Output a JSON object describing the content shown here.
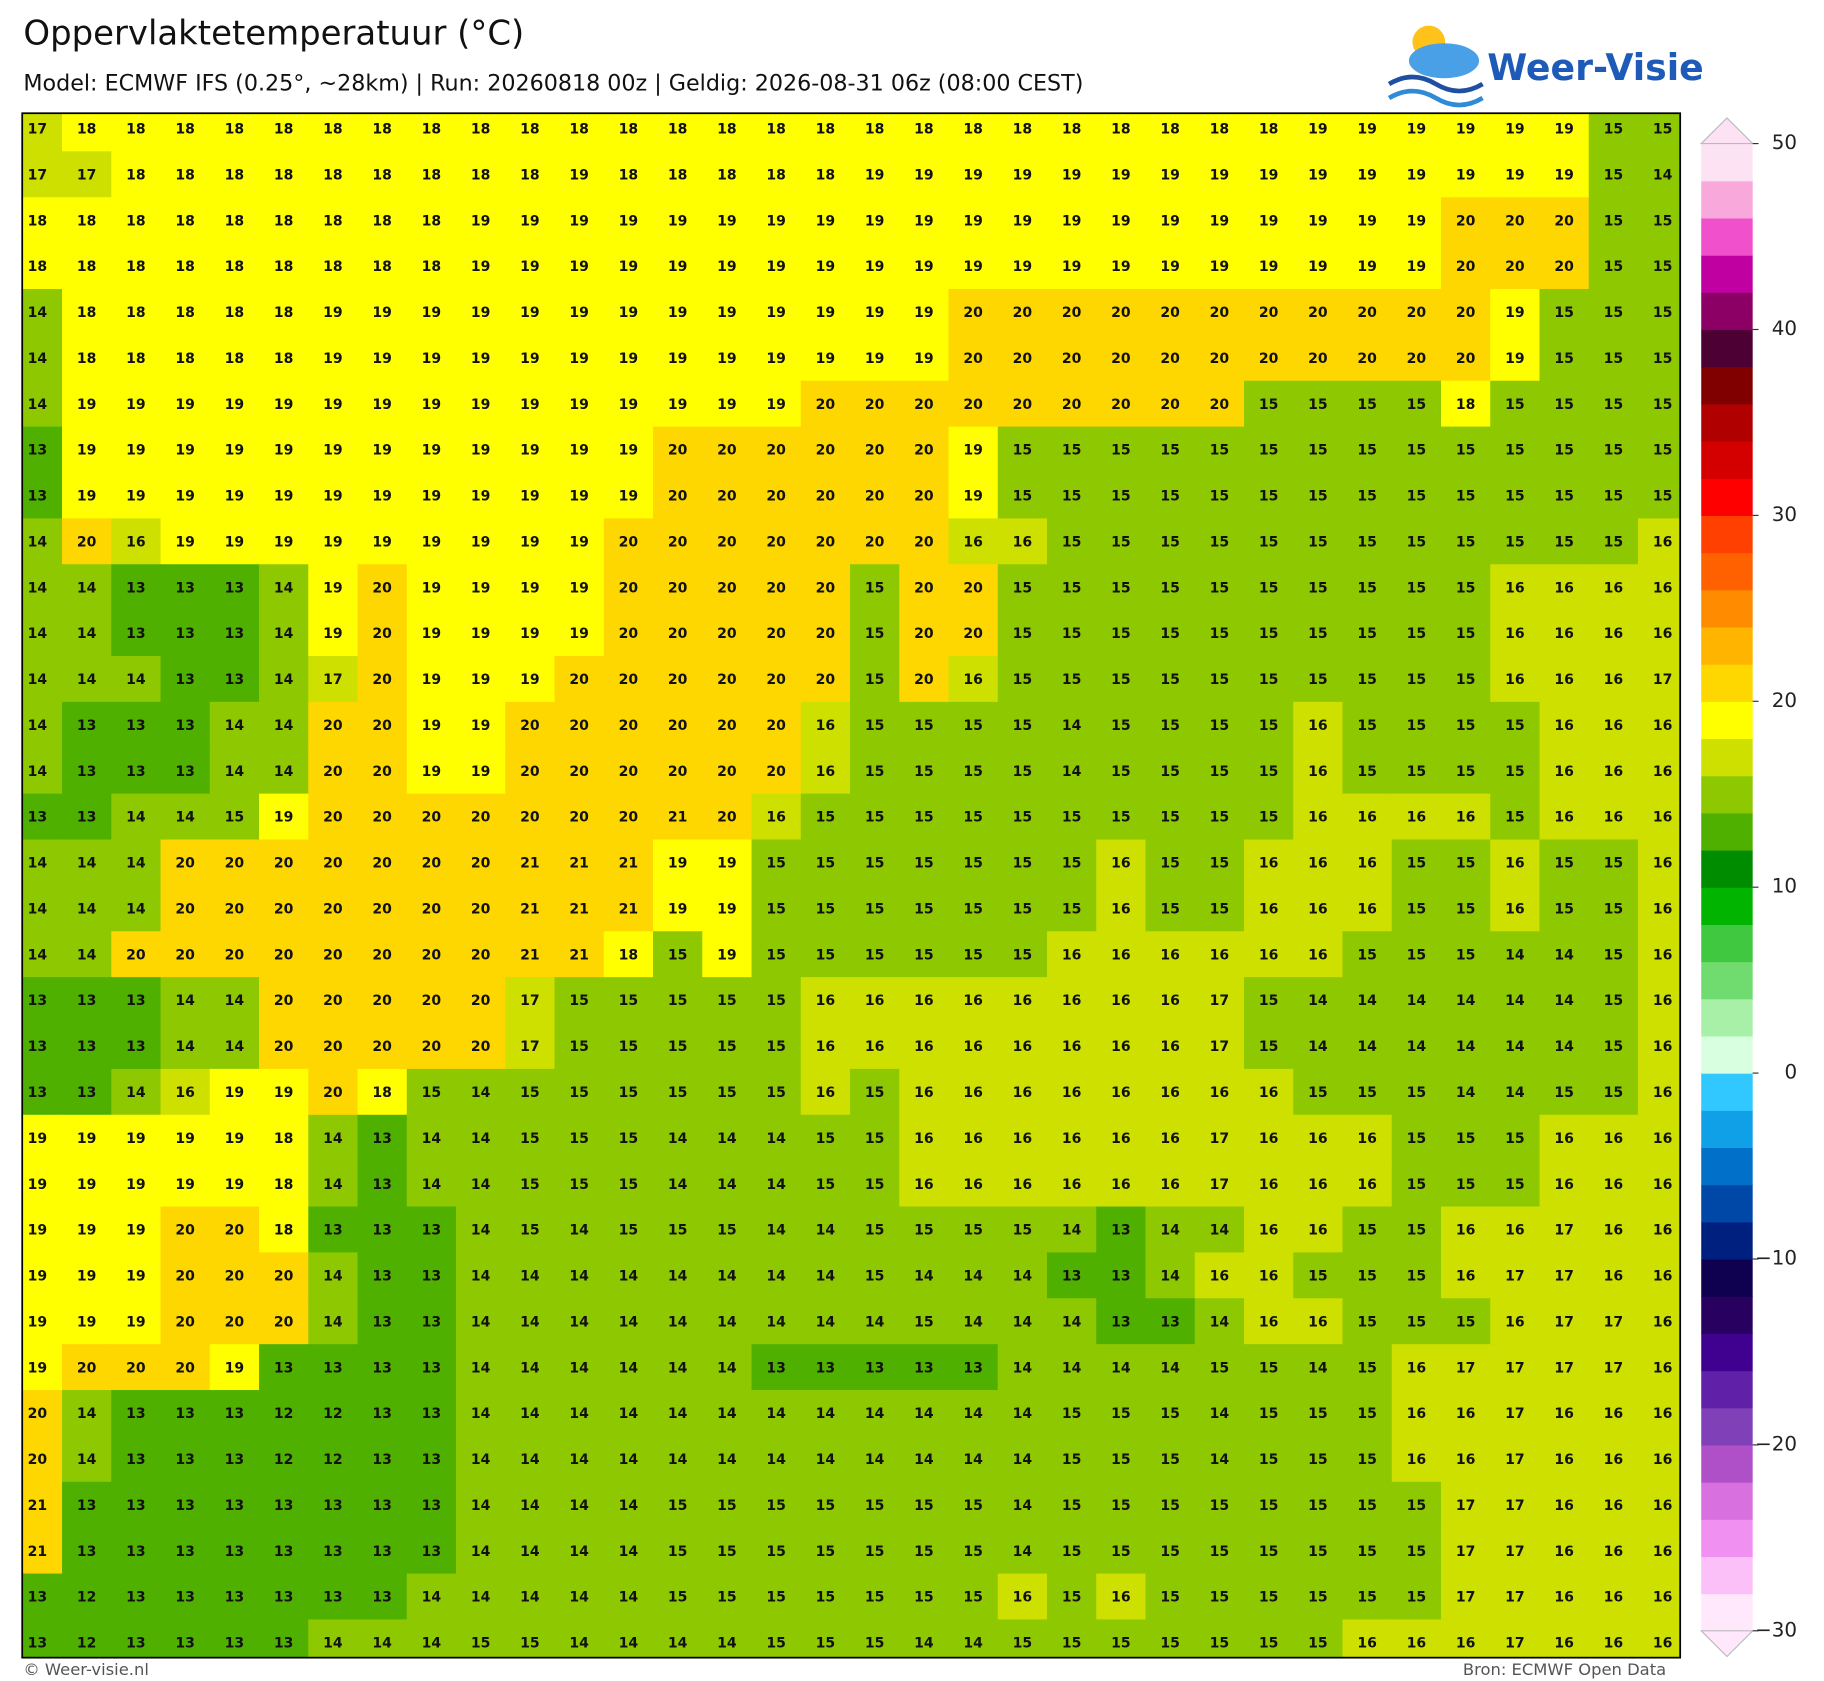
{
  "header": {
    "title": "Oppervlaktetemperatuur (°C)",
    "subtitle": "Model: ECMWF IFS (0.25°, ~28km)  |  Run: 20260818 00z  |  Geldig: 2026-08-31 06z (08:00 CEST)"
  },
  "logo": {
    "text": "Weer-Visie"
  },
  "grid": {
    "rows": [
      [
        17,
        18,
        18,
        18,
        18,
        18,
        18,
        18,
        18,
        18,
        18,
        18,
        18,
        18,
        18,
        18,
        18,
        18,
        18,
        18,
        18,
        18,
        18,
        18,
        18,
        18,
        19,
        19,
        19,
        19,
        19,
        19,
        15,
        15
      ],
      [
        17,
        17,
        18,
        18,
        18,
        18,
        18,
        18,
        18,
        18,
        18,
        19,
        18,
        18,
        18,
        18,
        18,
        19,
        19,
        19,
        19,
        19,
        19,
        19,
        19,
        19,
        19,
        19,
        19,
        19,
        19,
        19,
        15,
        14
      ],
      [
        18,
        18,
        18,
        18,
        18,
        18,
        18,
        18,
        18,
        19,
        19,
        19,
        19,
        19,
        19,
        19,
        19,
        19,
        19,
        19,
        19,
        19,
        19,
        19,
        19,
        19,
        19,
        19,
        19,
        20,
        20,
        20,
        15,
        15
      ],
      [
        18,
        18,
        18,
        18,
        18,
        18,
        18,
        18,
        18,
        19,
        19,
        19,
        19,
        19,
        19,
        19,
        19,
        19,
        19,
        19,
        19,
        19,
        19,
        19,
        19,
        19,
        19,
        19,
        19,
        20,
        20,
        20,
        15,
        15
      ],
      [
        14,
        18,
        18,
        18,
        18,
        18,
        19,
        19,
        19,
        19,
        19,
        19,
        19,
        19,
        19,
        19,
        19,
        19,
        19,
        20,
        20,
        20,
        20,
        20,
        20,
        20,
        20,
        20,
        20,
        20,
        19,
        15,
        15,
        15
      ],
      [
        14,
        18,
        18,
        18,
        18,
        18,
        19,
        19,
        19,
        19,
        19,
        19,
        19,
        19,
        19,
        19,
        19,
        19,
        19,
        20,
        20,
        20,
        20,
        20,
        20,
        20,
        20,
        20,
        20,
        20,
        19,
        15,
        15,
        15
      ],
      [
        14,
        19,
        19,
        19,
        19,
        19,
        19,
        19,
        19,
        19,
        19,
        19,
        19,
        19,
        19,
        19,
        20,
        20,
        20,
        20,
        20,
        20,
        20,
        20,
        20,
        15,
        15,
        15,
        15,
        18,
        15,
        15,
        15,
        15
      ],
      [
        13,
        19,
        19,
        19,
        19,
        19,
        19,
        19,
        19,
        19,
        19,
        19,
        19,
        20,
        20,
        20,
        20,
        20,
        20,
        19,
        15,
        15,
        15,
        15,
        15,
        15,
        15,
        15,
        15,
        15,
        15,
        15,
        15,
        15
      ],
      [
        13,
        19,
        19,
        19,
        19,
        19,
        19,
        19,
        19,
        19,
        19,
        19,
        19,
        20,
        20,
        20,
        20,
        20,
        20,
        19,
        15,
        15,
        15,
        15,
        15,
        15,
        15,
        15,
        15,
        15,
        15,
        15,
        15,
        15
      ],
      [
        14,
        20,
        16,
        19,
        19,
        19,
        19,
        19,
        19,
        19,
        19,
        19,
        20,
        20,
        20,
        20,
        20,
        20,
        20,
        16,
        16,
        15,
        15,
        15,
        15,
        15,
        15,
        15,
        15,
        15,
        15,
        15,
        15,
        16
      ],
      [
        14,
        14,
        13,
        13,
        13,
        14,
        19,
        20,
        19,
        19,
        19,
        19,
        20,
        20,
        20,
        20,
        20,
        15,
        20,
        20,
        15,
        15,
        15,
        15,
        15,
        15,
        15,
        15,
        15,
        15,
        16,
        16,
        16,
        16
      ],
      [
        14,
        14,
        13,
        13,
        13,
        14,
        19,
        20,
        19,
        19,
        19,
        19,
        20,
        20,
        20,
        20,
        20,
        15,
        20,
        20,
        15,
        15,
        15,
        15,
        15,
        15,
        15,
        15,
        15,
        15,
        16,
        16,
        16,
        16
      ],
      [
        14,
        14,
        14,
        13,
        13,
        14,
        17,
        20,
        19,
        19,
        19,
        20,
        20,
        20,
        20,
        20,
        20,
        15,
        20,
        16,
        15,
        15,
        15,
        15,
        15,
        15,
        15,
        15,
        15,
        15,
        16,
        16,
        16,
        17
      ],
      [
        14,
        13,
        13,
        13,
        14,
        14,
        20,
        20,
        19,
        19,
        20,
        20,
        20,
        20,
        20,
        20,
        16,
        15,
        15,
        15,
        15,
        14,
        15,
        15,
        15,
        15,
        16,
        15,
        15,
        15,
        15,
        16,
        16,
        16
      ],
      [
        14,
        13,
        13,
        13,
        14,
        14,
        20,
        20,
        19,
        19,
        20,
        20,
        20,
        20,
        20,
        20,
        16,
        15,
        15,
        15,
        15,
        14,
        15,
        15,
        15,
        15,
        16,
        15,
        15,
        15,
        15,
        16,
        16,
        16
      ],
      [
        13,
        13,
        14,
        14,
        15,
        19,
        20,
        20,
        20,
        20,
        20,
        20,
        20,
        21,
        20,
        16,
        15,
        15,
        15,
        15,
        15,
        15,
        15,
        15,
        15,
        15,
        16,
        16,
        16,
        16,
        15,
        16,
        16,
        16
      ],
      [
        14,
        14,
        14,
        20,
        20,
        20,
        20,
        20,
        20,
        20,
        21,
        21,
        21,
        19,
        19,
        15,
        15,
        15,
        15,
        15,
        15,
        15,
        16,
        15,
        15,
        16,
        16,
        16,
        15,
        15,
        16,
        15,
        15,
        16
      ],
      [
        14,
        14,
        14,
        20,
        20,
        20,
        20,
        20,
        20,
        20,
        21,
        21,
        21,
        19,
        19,
        15,
        15,
        15,
        15,
        15,
        15,
        15,
        16,
        15,
        15,
        16,
        16,
        16,
        15,
        15,
        16,
        15,
        15,
        16
      ],
      [
        14,
        14,
        20,
        20,
        20,
        20,
        20,
        20,
        20,
        20,
        21,
        21,
        18,
        15,
        19,
        15,
        15,
        15,
        15,
        15,
        15,
        16,
        16,
        16,
        16,
        16,
        16,
        15,
        15,
        15,
        14,
        14,
        15,
        16
      ],
      [
        13,
        13,
        13,
        14,
        14,
        20,
        20,
        20,
        20,
        20,
        17,
        15,
        15,
        15,
        15,
        15,
        16,
        16,
        16,
        16,
        16,
        16,
        16,
        16,
        17,
        15,
        14,
        14,
        14,
        14,
        14,
        14,
        15,
        16
      ],
      [
        13,
        13,
        13,
        14,
        14,
        20,
        20,
        20,
        20,
        20,
        17,
        15,
        15,
        15,
        15,
        15,
        16,
        16,
        16,
        16,
        16,
        16,
        16,
        16,
        17,
        15,
        14,
        14,
        14,
        14,
        14,
        14,
        15,
        16
      ],
      [
        13,
        13,
        14,
        16,
        19,
        19,
        20,
        18,
        15,
        14,
        15,
        15,
        15,
        15,
        15,
        15,
        16,
        15,
        16,
        16,
        16,
        16,
        16,
        16,
        16,
        16,
        15,
        15,
        15,
        14,
        14,
        15,
        15,
        16
      ],
      [
        19,
        19,
        19,
        19,
        19,
        18,
        14,
        13,
        14,
        14,
        15,
        15,
        15,
        14,
        14,
        14,
        15,
        15,
        16,
        16,
        16,
        16,
        16,
        16,
        17,
        16,
        16,
        16,
        15,
        15,
        15,
        16,
        16,
        16
      ],
      [
        19,
        19,
        19,
        19,
        19,
        18,
        14,
        13,
        14,
        14,
        15,
        15,
        15,
        14,
        14,
        14,
        15,
        15,
        16,
        16,
        16,
        16,
        16,
        16,
        17,
        16,
        16,
        16,
        15,
        15,
        15,
        16,
        16,
        16
      ],
      [
        19,
        19,
        19,
        20,
        20,
        18,
        13,
        13,
        13,
        14,
        15,
        14,
        15,
        15,
        15,
        14,
        14,
        15,
        15,
        15,
        15,
        14,
        13,
        14,
        14,
        16,
        16,
        15,
        15,
        16,
        16,
        17,
        16,
        16
      ],
      [
        19,
        19,
        19,
        20,
        20,
        20,
        14,
        13,
        13,
        14,
        14,
        14,
        14,
        14,
        14,
        14,
        14,
        15,
        14,
        14,
        14,
        13,
        13,
        14,
        16,
        16,
        15,
        15,
        15,
        16,
        17,
        17,
        16,
        16
      ],
      [
        19,
        19,
        19,
        20,
        20,
        20,
        14,
        13,
        13,
        14,
        14,
        14,
        14,
        14,
        14,
        14,
        14,
        14,
        15,
        14,
        14,
        14,
        13,
        13,
        14,
        16,
        16,
        15,
        15,
        15,
        16,
        17,
        17,
        16
      ],
      [
        19,
        20,
        20,
        20,
        19,
        13,
        13,
        13,
        13,
        14,
        14,
        14,
        14,
        14,
        14,
        13,
        13,
        13,
        13,
        13,
        14,
        14,
        14,
        14,
        15,
        15,
        14,
        15,
        16,
        17,
        17,
        17,
        17,
        16
      ],
      [
        20,
        14,
        13,
        13,
        13,
        12,
        12,
        13,
        13,
        14,
        14,
        14,
        14,
        14,
        14,
        14,
        14,
        14,
        14,
        14,
        14,
        15,
        15,
        15,
        14,
        15,
        15,
        15,
        16,
        16,
        17,
        16,
        16,
        16
      ],
      [
        20,
        14,
        13,
        13,
        13,
        12,
        12,
        13,
        13,
        14,
        14,
        14,
        14,
        14,
        14,
        14,
        14,
        14,
        14,
        14,
        14,
        15,
        15,
        15,
        14,
        15,
        15,
        15,
        16,
        16,
        17,
        16,
        16,
        16
      ],
      [
        21,
        13,
        13,
        13,
        13,
        13,
        13,
        13,
        13,
        14,
        14,
        14,
        14,
        15,
        15,
        15,
        15,
        15,
        15,
        15,
        14,
        15,
        15,
        15,
        15,
        15,
        15,
        15,
        15,
        17,
        17,
        16,
        16,
        16
      ],
      [
        21,
        13,
        13,
        13,
        13,
        13,
        13,
        13,
        13,
        14,
        14,
        14,
        14,
        15,
        15,
        15,
        15,
        15,
        15,
        15,
        14,
        15,
        15,
        15,
        15,
        15,
        15,
        15,
        15,
        17,
        17,
        16,
        16,
        16
      ],
      [
        13,
        12,
        13,
        13,
        13,
        13,
        13,
        13,
        14,
        14,
        14,
        14,
        14,
        15,
        15,
        15,
        15,
        15,
        15,
        15,
        16,
        15,
        16,
        15,
        15,
        15,
        15,
        15,
        15,
        17,
        17,
        16,
        16,
        16
      ],
      [
        13,
        12,
        13,
        13,
        13,
        13,
        14,
        14,
        14,
        15,
        15,
        14,
        14,
        14,
        14,
        15,
        15,
        15,
        14,
        14,
        15,
        15,
        15,
        15,
        15,
        15,
        15,
        16,
        16,
        16,
        17,
        16,
        16,
        16
      ]
    ]
  },
  "colorbar": {
    "min": -30,
    "max": 50,
    "ticks": [
      {
        "value": -30,
        "label": "−30"
      },
      {
        "value": -20,
        "label": "−20"
      },
      {
        "value": -10,
        "label": "−10"
      },
      0,
      10,
      20,
      30,
      40,
      50
    ],
    "colors": [
      "#ffe8fc",
      "#fcc0f8",
      "#f090f0",
      "#d870e0",
      "#b050c8",
      "#8040b8",
      "#6020a8",
      "#400090",
      "#280060",
      "#100050",
      "#002080",
      "#0048a8",
      "#0070c8",
      "#10a0e8",
      "#30c8ff",
      "#d8ffe0",
      "#a8f0a8",
      "#70dc70",
      "#40c840",
      "#00b400",
      "#008c00",
      "#50b000",
      "#8ec800",
      "#cde000",
      "#ffff00",
      "#ffd700",
      "#ffb400",
      "#ff8c00",
      "#ff6000",
      "#ff4000",
      "#ff0000",
      "#d40000",
      "#b00000",
      "#800000",
      "#4d0033",
      "#8c0066",
      "#c000a0",
      "#f050cc",
      "#f8a8db",
      "#fde2f3"
    ]
  },
  "footer": {
    "left": "© Weer-visie.nl",
    "right": "Bron: ECMWF Open Data"
  }
}
